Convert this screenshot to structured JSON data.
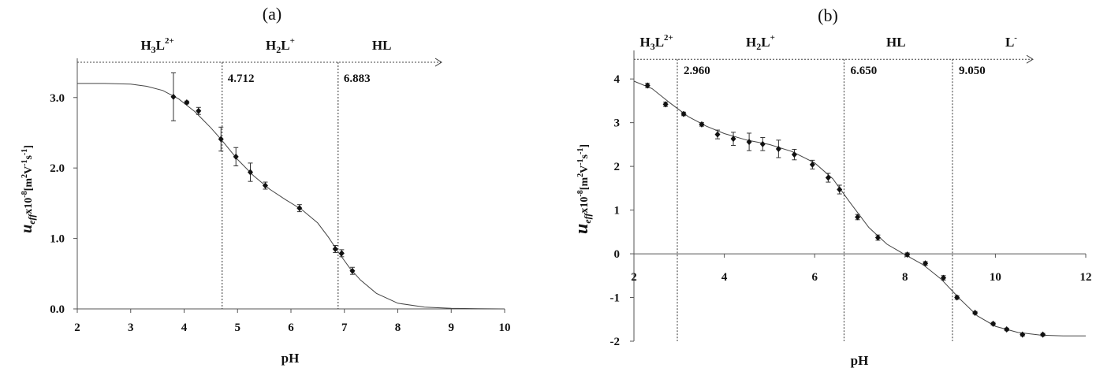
{
  "chart_data": [
    {
      "type": "scatter",
      "panel_label": "(a)",
      "xlabel": "pH",
      "ylabel": {
        "main": "u",
        "sub": "eff",
        "rest": "x10",
        "exp": "-8",
        "unit_open": "[m",
        "unit_sup1": "2",
        "unit_mid": "V",
        "unit_sup2": "-1",
        "unit_s": "s",
        "unit_sup3": "-1",
        "unit_close": "]"
      },
      "xlim": [
        2,
        10
      ],
      "ylim": [
        0,
        3.4
      ],
      "xticks": [
        2,
        3,
        4,
        5,
        6,
        7,
        8,
        9,
        10
      ],
      "xtick_labels": [
        "2",
        "3",
        "4",
        "5",
        "6",
        "7",
        "8",
        "9",
        "10"
      ],
      "yticks": [
        0,
        1,
        2,
        3
      ],
      "ytick_labels": [
        "0.0",
        "1.0",
        "2.0",
        "3.0"
      ],
      "grid": false,
      "species_axis_y": 3.5,
      "species": [
        {
          "base": "H",
          "sub1": "3",
          "mid": "L",
          "sup": "2+",
          "x": 3.5
        },
        {
          "base": "H",
          "sub1": "2",
          "mid": "L",
          "sup": "+",
          "x": 5.8
        },
        {
          "base": "HL",
          "sub1": "",
          "mid": "",
          "sup": "",
          "x": 7.7
        }
      ],
      "pka_lines": [
        {
          "x": 4.712,
          "label": "4.712"
        },
        {
          "x": 6.883,
          "label": "6.883"
        }
      ],
      "series": [
        {
          "x": [
            3.8,
            4.05,
            4.27,
            4.69,
            4.97,
            5.24,
            5.52,
            6.16,
            6.83,
            6.95,
            7.15
          ],
          "y": [
            3.01,
            2.93,
            2.81,
            2.41,
            2.16,
            1.94,
            1.75,
            1.43,
            0.85,
            0.79,
            0.54
          ],
          "err": [
            0.34,
            0.02,
            0.05,
            0.17,
            0.13,
            0.13,
            0.05,
            0.05,
            0.05,
            0.05,
            0.05
          ]
        }
      ],
      "fit_curve": {
        "x": [
          2.0,
          2.5,
          3.0,
          3.3,
          3.6,
          3.9,
          4.2,
          4.5,
          4.7,
          5.0,
          5.3,
          5.6,
          5.9,
          6.2,
          6.5,
          6.7,
          6.9,
          7.1,
          7.3,
          7.6,
          8.0,
          8.5,
          9.0,
          9.5,
          10.0
        ],
        "y": [
          3.2,
          3.2,
          3.19,
          3.16,
          3.1,
          2.98,
          2.8,
          2.57,
          2.4,
          2.12,
          1.89,
          1.7,
          1.55,
          1.41,
          1.22,
          1.02,
          0.79,
          0.58,
          0.41,
          0.22,
          0.08,
          0.025,
          0.008,
          0.002,
          0.0
        ]
      }
    },
    {
      "type": "scatter",
      "panel_label": "(b)",
      "xlabel": "pH",
      "ylabel": {
        "main": "u",
        "sub": "eff",
        "rest": "x10",
        "exp": "-8",
        "unit_open": "[m",
        "unit_sup1": "2",
        "unit_mid": "V",
        "unit_sup2": "-1",
        "unit_s": "s",
        "unit_sup3": "-1",
        "unit_close": "]"
      },
      "xlim": [
        2,
        12
      ],
      "ylim": [
        -2,
        4.4
      ],
      "xticks": [
        2,
        4,
        6,
        8,
        10,
        12
      ],
      "xtick_labels": [
        "2",
        "4",
        "6",
        "8",
        "10",
        "12"
      ],
      "yticks": [
        -2,
        -1,
        0,
        1,
        2,
        3,
        4
      ],
      "ytick_labels": [
        "-2",
        "-1",
        "0",
        "1",
        "2",
        "3",
        "4"
      ],
      "grid": false,
      "species_axis_y": 4.45,
      "species": [
        {
          "base": "H",
          "sub1": "3",
          "mid": "L",
          "sup": "2+",
          "x": 2.5
        },
        {
          "base": "H",
          "sub1": "2",
          "mid": "L",
          "sup": "+",
          "x": 4.8
        },
        {
          "base": "HL",
          "sub1": "",
          "mid": "",
          "sup": "",
          "x": 7.8
        },
        {
          "base": "L",
          "sub1": "",
          "mid": "",
          "sup": "-",
          "x": 10.35
        }
      ],
      "pka_lines": [
        {
          "x": 2.96,
          "label": "2.960"
        },
        {
          "x": 6.65,
          "label": "6.650"
        },
        {
          "x": 9.05,
          "label": "9.050"
        }
      ],
      "series": [
        {
          "x": [
            2.3,
            2.7,
            3.1,
            3.5,
            3.85,
            4.2,
            4.55,
            4.85,
            5.2,
            5.55,
            5.95,
            6.3,
            6.55,
            6.95,
            7.4,
            8.05,
            8.45,
            8.85,
            9.15,
            9.55,
            9.95,
            10.25,
            10.6,
            11.05
          ],
          "y": [
            3.85,
            3.42,
            3.2,
            2.96,
            2.73,
            2.63,
            2.56,
            2.51,
            2.4,
            2.27,
            2.04,
            1.74,
            1.47,
            0.84,
            0.37,
            -0.02,
            -0.22,
            -0.55,
            -1.0,
            -1.35,
            -1.6,
            -1.73,
            -1.85,
            -1.85
          ],
          "err": [
            0.05,
            0.05,
            0.04,
            0.04,
            0.1,
            0.15,
            0.2,
            0.15,
            0.2,
            0.12,
            0.1,
            0.1,
            0.1,
            0.06,
            0.06,
            0.04,
            0.04,
            0.05,
            0.04,
            0.03,
            0.03,
            0.03,
            0.03,
            0.03
          ]
        }
      ],
      "fit_curve": {
        "x": [
          2.0,
          2.4,
          2.8,
          3.2,
          3.6,
          4.0,
          4.5,
          5.0,
          5.5,
          6.0,
          6.4,
          6.8,
          7.2,
          7.6,
          8.0,
          8.4,
          8.8,
          9.2,
          9.6,
          10.0,
          10.5,
          11.0,
          11.5,
          12.0
        ],
        "y": [
          3.95,
          3.78,
          3.45,
          3.14,
          2.92,
          2.75,
          2.6,
          2.5,
          2.34,
          2.08,
          1.72,
          1.15,
          0.6,
          0.22,
          -0.02,
          -0.25,
          -0.58,
          -1.02,
          -1.42,
          -1.66,
          -1.8,
          -1.86,
          -1.88,
          -1.88
        ]
      }
    }
  ]
}
